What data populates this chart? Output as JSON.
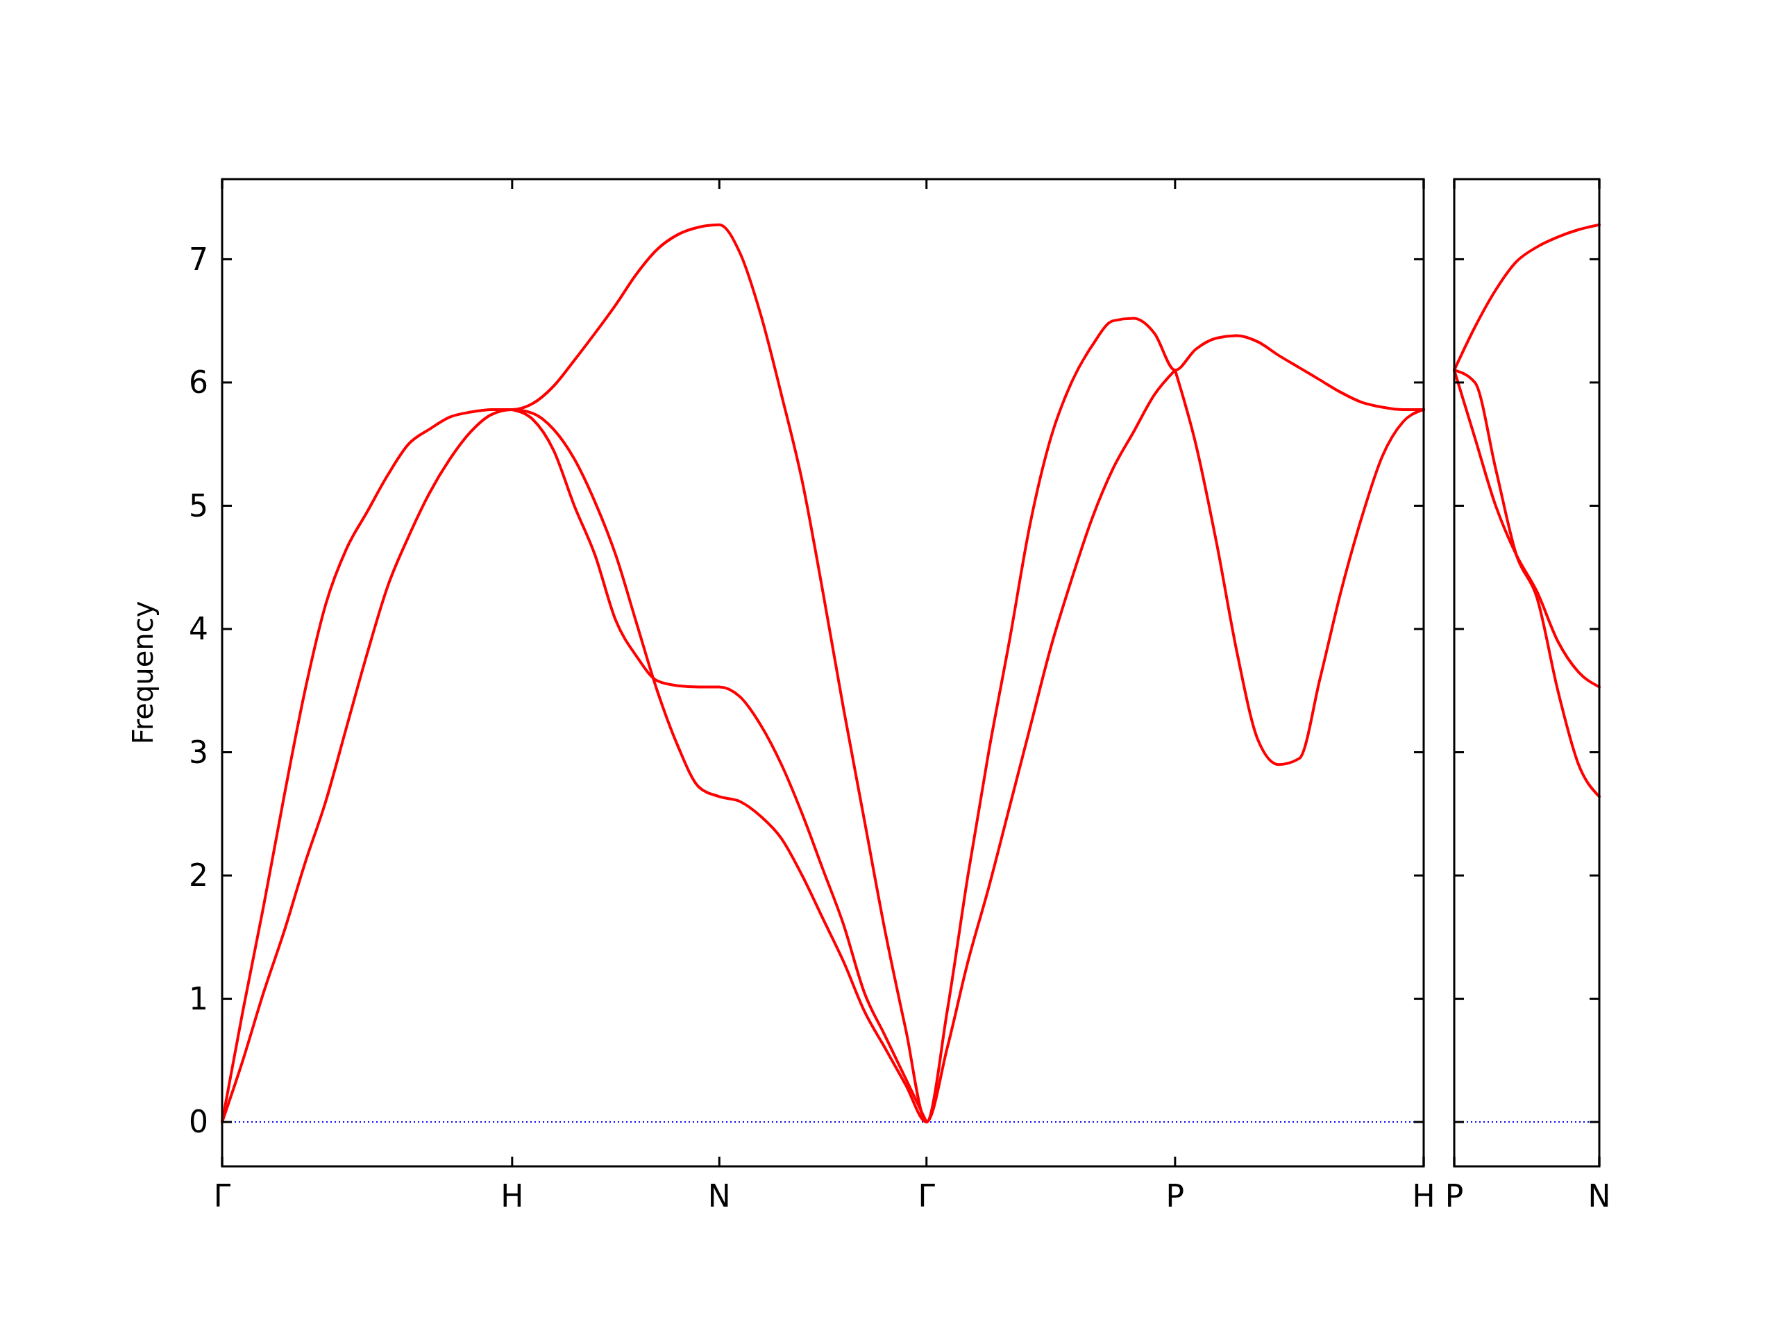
{
  "chart_data": [
    {
      "type": "line",
      "ylabel": "Frequency",
      "ylim": [
        -0.36,
        7.65
      ],
      "categories": [
        "Γ",
        null,
        null,
        null,
        null,
        null,
        null,
        null,
        null,
        null,
        null,
        null,
        null,
        null,
        "H",
        null,
        null,
        null,
        null,
        null,
        null,
        null,
        null,
        null,
        "N",
        null,
        null,
        null,
        null,
        null,
        null,
        null,
        null,
        null,
        "Γ",
        null,
        null,
        null,
        null,
        null,
        null,
        null,
        null,
        null,
        null,
        null,
        "P",
        null,
        null,
        null,
        null,
        null,
        null,
        null,
        null,
        null,
        null,
        null,
        "H"
      ],
      "yticks": [
        0,
        1,
        2,
        3,
        4,
        5,
        6,
        7
      ],
      "grid": false,
      "line_style": "solid",
      "marker": "none",
      "ref_lines": [
        {
          "axis": "y",
          "value": 0,
          "color": "#0000ff",
          "line_style": "dotted"
        }
      ],
      "series": [
        {
          "color": "#ff0000",
          "values": [
            0,
            0.5,
            1.05,
            1.55,
            2.1,
            2.6,
            3.2,
            3.8,
            4.35,
            4.75,
            5.1,
            5.38,
            5.6,
            5.74,
            5.78,
            5.75,
            5.62,
            5.38,
            5.03,
            4.6,
            4.05,
            3.5,
            3.05,
            2.72,
            2.64,
            2.6,
            2.48,
            2.3,
            2.0,
            1.65,
            1.3,
            0.9,
            0.6,
            0.3,
            0,
            0.6,
            1.3,
            1.9,
            2.55,
            3.2,
            3.85,
            4.4,
            4.9,
            5.3,
            5.6,
            5.9,
            6.1,
            null,
            null,
            null,
            null,
            null,
            null,
            null,
            null,
            null,
            null,
            null,
            null
          ]
        },
        {
          "color": "#ff0000",
          "values": [
            0,
            0.9,
            1.75,
            2.65,
            3.5,
            4.2,
            4.65,
            4.95,
            5.25,
            5.5,
            5.62,
            5.72,
            5.76,
            5.78,
            5.78,
            5.83,
            5.97,
            6.18,
            6.4,
            6.63,
            6.88,
            7.08,
            7.2,
            7.26,
            7.28,
            7.05,
            6.55,
            5.9,
            5.2,
            4.3,
            3.35,
            2.45,
            1.55,
            0.75,
            0,
            0.9,
            2.0,
            3.0,
            3.9,
            4.85,
            5.55,
            6.0,
            6.3,
            6.5,
            6.52,
            6.4,
            6.1,
            6.27,
            6.36,
            6.38,
            6.33,
            6.22,
            6.12,
            6.02,
            5.92,
            5.84,
            5.8,
            5.78,
            5.78
          ]
        },
        {
          "color": "#ff0000",
          "values": [
            null,
            null,
            null,
            null,
            null,
            null,
            null,
            null,
            null,
            null,
            null,
            null,
            null,
            null,
            5.78,
            5.7,
            5.45,
            5.0,
            4.6,
            4.07,
            3.78,
            3.58,
            3.54,
            3.53,
            3.53,
            3.45,
            3.22,
            2.9,
            2.5,
            2.05,
            1.6,
            1.05,
            0.7,
            0.35,
            0,
            null,
            null,
            null,
            null,
            null,
            null,
            null,
            null,
            null,
            null,
            null,
            null,
            null,
            null,
            null,
            null,
            null,
            null,
            null,
            null,
            null,
            null,
            null,
            null
          ]
        },
        {
          "color": "#ff0000",
          "values": [
            null,
            null,
            null,
            null,
            null,
            null,
            null,
            null,
            null,
            null,
            null,
            null,
            null,
            null,
            null,
            null,
            null,
            null,
            null,
            null,
            null,
            null,
            null,
            null,
            null,
            null,
            null,
            null,
            null,
            null,
            null,
            null,
            null,
            null,
            null,
            null,
            null,
            null,
            null,
            null,
            null,
            null,
            null,
            null,
            null,
            null,
            6.1,
            5.5,
            4.7,
            3.8,
            3.1,
            2.9,
            2.95,
            3.6,
            4.3,
            4.9,
            5.4,
            5.68,
            5.78
          ]
        }
      ]
    },
    {
      "type": "line",
      "ylim": [
        -0.36,
        7.65
      ],
      "tick_labels": "x",
      "categories": [
        "P",
        null,
        null,
        null,
        null,
        null,
        null,
        "N"
      ],
      "yticks": [
        0,
        1,
        2,
        3,
        4,
        5,
        6,
        7
      ],
      "grid": false,
      "line_style": "solid",
      "marker": "none",
      "ref_lines": [
        {
          "axis": "y",
          "value": 0,
          "color": "#0000ff",
          "line_style": "dotted"
        }
      ],
      "series": [
        {
          "color": "#ff0000",
          "values": [
            6.1,
            6.45,
            6.75,
            6.98,
            7.1,
            7.18,
            7.24,
            7.28
          ]
        },
        {
          "color": "#ff0000",
          "values": [
            6.1,
            5.55,
            5.0,
            4.6,
            4.3,
            3.9,
            3.65,
            3.53
          ]
        },
        {
          "color": "#ff0000",
          "values": [
            6.1,
            6.0,
            5.3,
            4.6,
            4.25,
            3.5,
            2.9,
            2.64
          ]
        }
      ]
    }
  ]
}
